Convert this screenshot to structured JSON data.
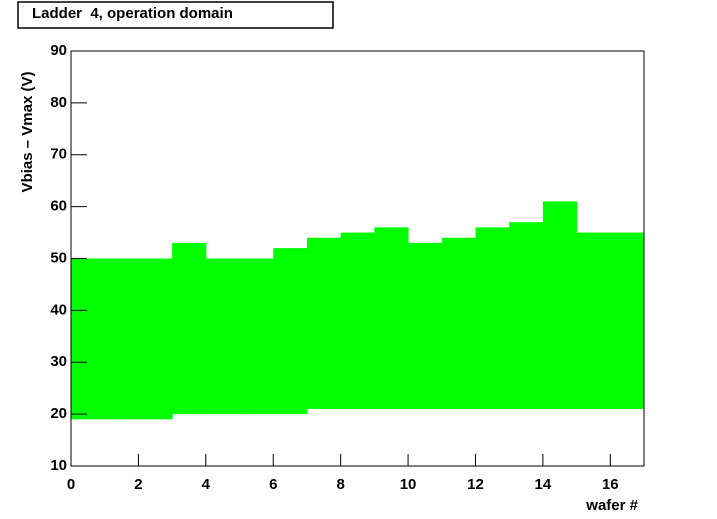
{
  "chart_data": {
    "type": "range-bar",
    "title": "Ladder  4, operation domain",
    "ylabel": "Vbias – Vmax (V)",
    "xlabel": "wafer #",
    "bins": [
      0,
      1,
      2,
      3,
      4,
      5,
      6,
      7,
      8,
      9,
      10,
      11,
      12,
      13,
      14,
      15,
      16,
      17
    ],
    "low": [
      19,
      19,
      19,
      20,
      20,
      20,
      20,
      21,
      21,
      21,
      21,
      21,
      21,
      21,
      21,
      21,
      21
    ],
    "high": [
      50,
      50,
      50,
      53,
      50,
      50,
      52,
      54,
      55,
      56,
      53,
      54,
      56,
      57,
      61,
      55,
      55
    ],
    "color": "#00ff00",
    "xlim": [
      0,
      17
    ],
    "xticks": [
      0,
      2,
      4,
      6,
      8,
      10,
      12,
      14,
      16
    ],
    "ylim": [
      10,
      90
    ],
    "yticks": [
      10,
      20,
      30,
      40,
      50,
      60,
      70,
      80,
      90
    ]
  }
}
